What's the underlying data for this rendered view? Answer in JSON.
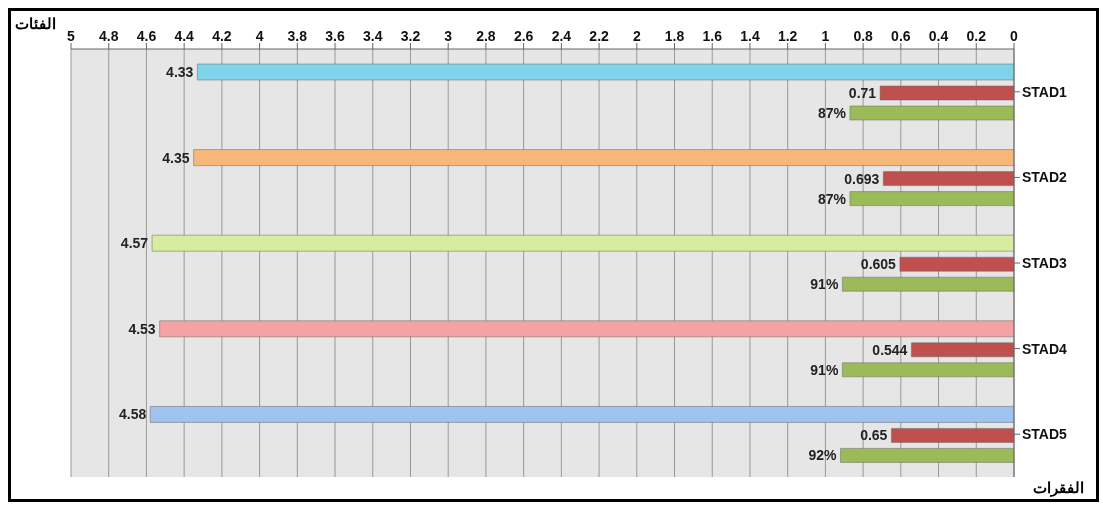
{
  "chart_data": {
    "type": "bar",
    "orientation": "horizontal",
    "xlabel": "الفئات",
    "ylabel": "الفقرات",
    "categories": [
      "STAD1",
      "STAD2",
      "STAD3",
      "STAD4",
      "STAD5"
    ],
    "series": [
      {
        "colors": [
          "#7fd3ea",
          "#f7b77a",
          "#d6eca0",
          "#f4a3a3",
          "#9fc3ee"
        ],
        "values": [
          4.33,
          4.35,
          4.57,
          4.53,
          4.58
        ],
        "value_labels": [
          "4.33",
          "4.35",
          "4.57",
          "4.53",
          "4.58"
        ]
      },
      {
        "color": "#c0504d",
        "values": [
          0.71,
          0.693,
          0.605,
          0.544,
          0.65
        ],
        "value_labels": [
          "0.71",
          "0.693",
          "0.605",
          "0.544",
          "0.65"
        ]
      },
      {
        "color": "#9bbb59",
        "values": [
          0.87,
          0.87,
          0.91,
          0.91,
          0.92
        ],
        "value_labels": [
          "87%",
          "87%",
          "91%",
          "91%",
          "92%"
        ]
      }
    ],
    "xlim": [
      5,
      0
    ],
    "xticks": [
      0,
      0.2,
      0.4,
      0.6,
      0.8,
      1,
      1.2,
      1.4,
      1.6,
      1.8,
      2,
      2.2,
      2.4,
      2.6,
      2.8,
      3,
      3.2,
      3.4,
      3.6,
      3.8,
      4,
      4.2,
      4.4,
      4.6,
      4.8,
      5
    ],
    "grid": "x",
    "legend": false
  }
}
